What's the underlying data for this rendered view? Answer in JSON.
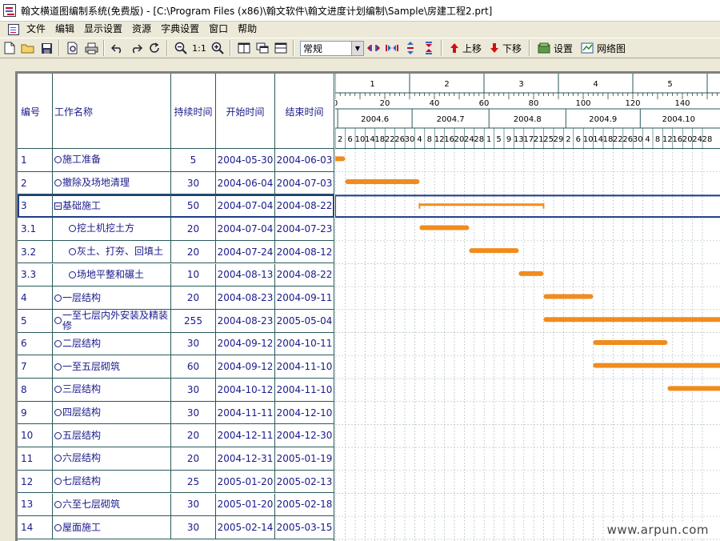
{
  "window": {
    "title": "翰文横道图编制系统(免费版) - [C:\\Program Files (x86)\\翰文软件\\翰文进度计划编制\\Sample\\房建工程2.prt]"
  },
  "menu": {
    "items": [
      "文件",
      "编辑",
      "显示设置",
      "资源",
      "字典设置",
      "窗口",
      "帮助"
    ]
  },
  "toolbar": {
    "view_combo": "常规",
    "move_up": "上移",
    "move_down": "下移",
    "settings": "设置",
    "network": "网络图",
    "zoom_ratio": "1:1"
  },
  "table": {
    "headers": {
      "id": "编号",
      "name": "工作名称",
      "duration": "持续时间",
      "start": "开始时间",
      "end": "结束时间"
    },
    "rows": [
      {
        "id": "1",
        "name": "施工准备",
        "duration": "5",
        "start": "2004-05-30",
        "end": "2004-06-03",
        "level": 0,
        "group": false
      },
      {
        "id": "2",
        "name": "撤除及场地清理",
        "duration": "30",
        "start": "2004-06-04",
        "end": "2004-07-03",
        "level": 0,
        "group": false
      },
      {
        "id": "3",
        "name": "基础施工",
        "duration": "50",
        "start": "2004-07-04",
        "end": "2004-08-22",
        "level": 0,
        "group": true
      },
      {
        "id": "3.1",
        "name": "挖土机挖土方",
        "duration": "20",
        "start": "2004-07-04",
        "end": "2004-07-23",
        "level": 1,
        "group": false
      },
      {
        "id": "3.2",
        "name": "灰土、打夯、回填土",
        "duration": "20",
        "start": "2004-07-24",
        "end": "2004-08-12",
        "level": 1,
        "group": false
      },
      {
        "id": "3.3",
        "name": "场地平整和碾土",
        "duration": "10",
        "start": "2004-08-13",
        "end": "2004-08-22",
        "level": 1,
        "group": false
      },
      {
        "id": "4",
        "name": "一层结构",
        "duration": "20",
        "start": "2004-08-23",
        "end": "2004-09-11",
        "level": 0,
        "group": false
      },
      {
        "id": "5",
        "name": "一至七层内外安装及精装修",
        "duration": "255",
        "start": "2004-08-23",
        "end": "2005-05-04",
        "level": 0,
        "group": false
      },
      {
        "id": "6",
        "name": "二层结构",
        "duration": "30",
        "start": "2004-09-12",
        "end": "2004-10-11",
        "level": 0,
        "group": false
      },
      {
        "id": "7",
        "name": "一至五层砌筑",
        "duration": "60",
        "start": "2004-09-12",
        "end": "2004-11-10",
        "level": 0,
        "group": false
      },
      {
        "id": "8",
        "name": "三层结构",
        "duration": "30",
        "start": "2004-10-12",
        "end": "2004-11-10",
        "level": 0,
        "group": false
      },
      {
        "id": "9",
        "name": "四层结构",
        "duration": "30",
        "start": "2004-11-11",
        "end": "2004-12-10",
        "level": 0,
        "group": false
      },
      {
        "id": "10",
        "name": "五层结构",
        "duration": "20",
        "start": "2004-12-11",
        "end": "2004-12-30",
        "level": 0,
        "group": false
      },
      {
        "id": "11",
        "name": "六层结构",
        "duration": "20",
        "start": "2004-12-31",
        "end": "2005-01-19",
        "level": 0,
        "group": false
      },
      {
        "id": "12",
        "name": "七层结构",
        "duration": "25",
        "start": "2005-01-20",
        "end": "2005-02-13",
        "level": 0,
        "group": false
      },
      {
        "id": "13",
        "name": "六至七层砌筑",
        "duration": "30",
        "start": "2005-01-20",
        "end": "2005-02-18",
        "level": 0,
        "group": false
      },
      {
        "id": "14",
        "name": "屋面施工",
        "duration": "30",
        "start": "2005-02-14",
        "end": "2005-03-15",
        "level": 0,
        "group": false
      }
    ]
  },
  "timescale": {
    "weeks": [
      "1",
      "2",
      "3",
      "4",
      "5"
    ],
    "day_ticks": [
      "0",
      "20",
      "40",
      "60",
      "80",
      "100",
      "120",
      "140"
    ],
    "months": [
      "2004.6",
      "2004.7",
      "2004.8",
      "2004.9",
      "2004.10"
    ],
    "days": [
      "2",
      "6",
      "10",
      "14",
      "18",
      "22",
      "26",
      "30",
      "4",
      "8",
      "12",
      "16",
      "20",
      "24",
      "28",
      "1",
      "5",
      "9",
      "13",
      "17",
      "21",
      "25",
      "29",
      "2",
      "6",
      "10",
      "14",
      "18",
      "22",
      "26",
      "30",
      "4",
      "8",
      "12",
      "16",
      "20",
      "24",
      "28"
    ]
  },
  "colors": {
    "bar": "#f08c1e",
    "grid": "#2a5a5a",
    "text": "#1a1a8a",
    "selection": "#1e3c8c"
  },
  "watermark": "www.arpun.com"
}
